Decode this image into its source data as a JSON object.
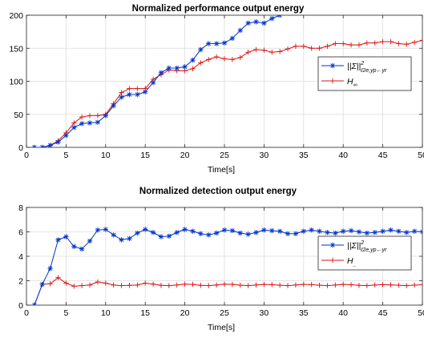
{
  "chart_data": [
    {
      "type": "line",
      "title": "Normalized performance output energy",
      "xlabel": "Time[s]",
      "ylabel": "",
      "xlim": [
        0,
        50
      ],
      "ylim": [
        0,
        200
      ],
      "xticks": [
        0,
        5,
        10,
        15,
        20,
        25,
        30,
        35,
        40,
        45,
        50
      ],
      "yticks": [
        0,
        50,
        100,
        150,
        200
      ],
      "grid": true,
      "legend_position": "right-middle",
      "series": [
        {
          "name": "||Σ||²_{ℓ2e,yp←yr}",
          "legend_main": "||Σ||",
          "legend_sup": "2",
          "legend_sub": "ℓ2e,yp←yr",
          "color": "#0033cc",
          "marker": "asterisk",
          "x": [
            1,
            2,
            3,
            4,
            5,
            6,
            7,
            8,
            9,
            10,
            11,
            12,
            13,
            14,
            15,
            16,
            17,
            18,
            19,
            20,
            21,
            22,
            23,
            24,
            25,
            26,
            27,
            28,
            29,
            30,
            31,
            32
          ],
          "y": [
            0,
            0,
            3,
            8,
            18,
            30,
            36,
            37,
            38,
            48,
            63,
            76,
            80,
            80,
            84,
            98,
            113,
            120,
            120,
            122,
            132,
            148,
            157,
            157,
            158,
            165,
            177,
            188,
            190,
            188,
            195,
            200
          ]
        },
        {
          "name": "H∞",
          "legend_main": "H",
          "legend_sub": "∞",
          "color": "#dd1111",
          "marker": "plus",
          "x": [
            1,
            2,
            3,
            4,
            5,
            6,
            7,
            8,
            9,
            10,
            11,
            12,
            13,
            14,
            15,
            16,
            17,
            18,
            19,
            20,
            21,
            22,
            23,
            24,
            25,
            26,
            27,
            28,
            29,
            30,
            31,
            32,
            33,
            34,
            35,
            36,
            37,
            38,
            39,
            40,
            41,
            42,
            43,
            44,
            45,
            46,
            47,
            48,
            49,
            50
          ],
          "y": [
            0,
            0,
            3,
            10,
            22,
            37,
            46,
            48,
            48,
            50,
            66,
            83,
            89,
            89,
            89,
            103,
            110,
            117,
            116,
            116,
            119,
            128,
            133,
            137,
            134,
            133,
            136,
            144,
            148,
            147,
            144,
            145,
            149,
            153,
            153,
            150,
            150,
            153,
            157,
            157,
            155,
            155,
            158,
            158,
            160,
            160,
            157,
            156,
            159,
            162
          ]
        }
      ]
    },
    {
      "type": "line",
      "title": "Normalized detection output energy",
      "xlabel": "Time[s]",
      "ylabel": "",
      "xlim": [
        0,
        50
      ],
      "ylim": [
        0,
        8
      ],
      "xticks": [
        0,
        5,
        10,
        15,
        20,
        25,
        30,
        35,
        40,
        45,
        50
      ],
      "yticks": [
        0,
        2,
        4,
        6,
        8
      ],
      "grid": true,
      "legend_position": "right-middle",
      "series": [
        {
          "name": "||Σ||²_{ℓ2e,yp←yr}",
          "legend_main": "||Σ||",
          "legend_sup": "2",
          "legend_sub": "ℓ2e,yp←yr",
          "color": "#0033cc",
          "marker": "asterisk",
          "x": [
            1,
            2,
            3,
            4,
            5,
            6,
            7,
            8,
            9,
            10,
            11,
            12,
            13,
            14,
            15,
            16,
            17,
            18,
            19,
            20,
            21,
            22,
            23,
            24,
            25,
            26,
            27,
            28,
            29,
            30,
            31,
            32,
            33,
            34,
            35,
            36,
            37,
            38,
            39,
            40,
            41,
            42,
            43,
            44,
            45,
            46,
            47,
            48,
            49,
            50
          ],
          "y": [
            0,
            1.7,
            3.0,
            5.35,
            5.6,
            4.8,
            4.6,
            5.25,
            6.15,
            6.2,
            5.75,
            5.35,
            5.45,
            5.9,
            6.2,
            5.95,
            5.6,
            5.65,
            5.95,
            6.2,
            6.05,
            5.85,
            5.75,
            5.9,
            6.15,
            6.1,
            5.9,
            5.8,
            5.95,
            6.15,
            6.1,
            6.05,
            5.85,
            5.85,
            6.05,
            6.15,
            6.05,
            5.95,
            5.9,
            6.05,
            6.1,
            6.0,
            5.9,
            5.95,
            6.05,
            6.15,
            6.05,
            5.95,
            6.05,
            6.0
          ]
        },
        {
          "name": "H_",
          "legend_main": "H",
          "legend_sub": "_",
          "color": "#dd1111",
          "marker": "plus",
          "x": [
            1,
            2,
            3,
            4,
            5,
            6,
            7,
            8,
            9,
            10,
            11,
            12,
            13,
            14,
            15,
            16,
            17,
            18,
            19,
            20,
            21,
            22,
            23,
            24,
            25,
            26,
            27,
            28,
            29,
            30,
            31,
            32,
            33,
            34,
            35,
            36,
            37,
            38,
            39,
            40,
            41,
            42,
            43,
            44,
            45,
            46,
            47,
            48,
            49,
            50
          ],
          "y": [
            0,
            1.7,
            1.75,
            2.25,
            1.8,
            1.55,
            1.6,
            1.65,
            1.9,
            1.8,
            1.65,
            1.6,
            1.62,
            1.65,
            1.8,
            1.72,
            1.62,
            1.6,
            1.65,
            1.72,
            1.7,
            1.62,
            1.6,
            1.65,
            1.72,
            1.7,
            1.63,
            1.6,
            1.65,
            1.7,
            1.68,
            1.63,
            1.6,
            1.65,
            1.7,
            1.68,
            1.63,
            1.6,
            1.65,
            1.7,
            1.67,
            1.62,
            1.6,
            1.65,
            1.68,
            1.66,
            1.63,
            1.6,
            1.64,
            1.67
          ]
        }
      ]
    }
  ]
}
